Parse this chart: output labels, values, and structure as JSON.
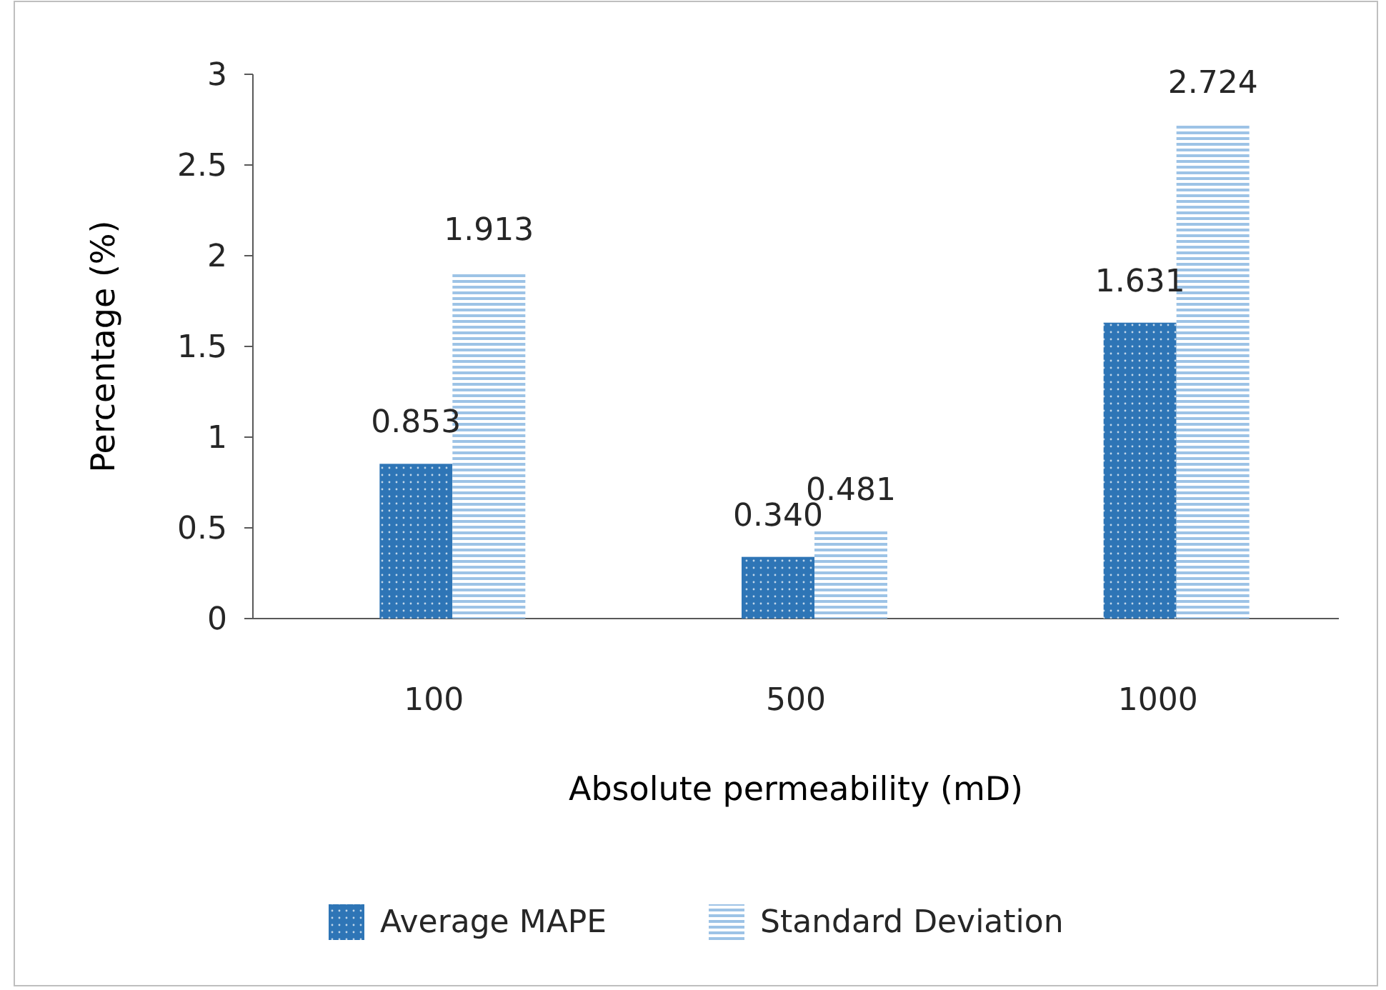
{
  "chart_data": {
    "type": "bar",
    "xlabel": "Absolute permeability (mD)",
    "ylabel": "Percentage (%)",
    "categories": [
      "100",
      "500",
      "1000"
    ],
    "series": [
      {
        "name": "Average MAPE",
        "color": "#2e75b6",
        "values": [
          0.853,
          0.34,
          1.631
        ],
        "value_labels": [
          "0.853",
          "0.340",
          "1.631"
        ]
      },
      {
        "name": "Standard Deviation",
        "color": "#9dc3e6",
        "values": [
          1.913,
          0.481,
          2.724
        ],
        "value_labels": [
          "1.913",
          "0.481",
          "2.724"
        ]
      }
    ],
    "ylim": [
      0,
      3
    ],
    "yticks": [
      0,
      0.5,
      1,
      1.5,
      2,
      2.5,
      3
    ],
    "grid": false,
    "legend": "bottom"
  }
}
